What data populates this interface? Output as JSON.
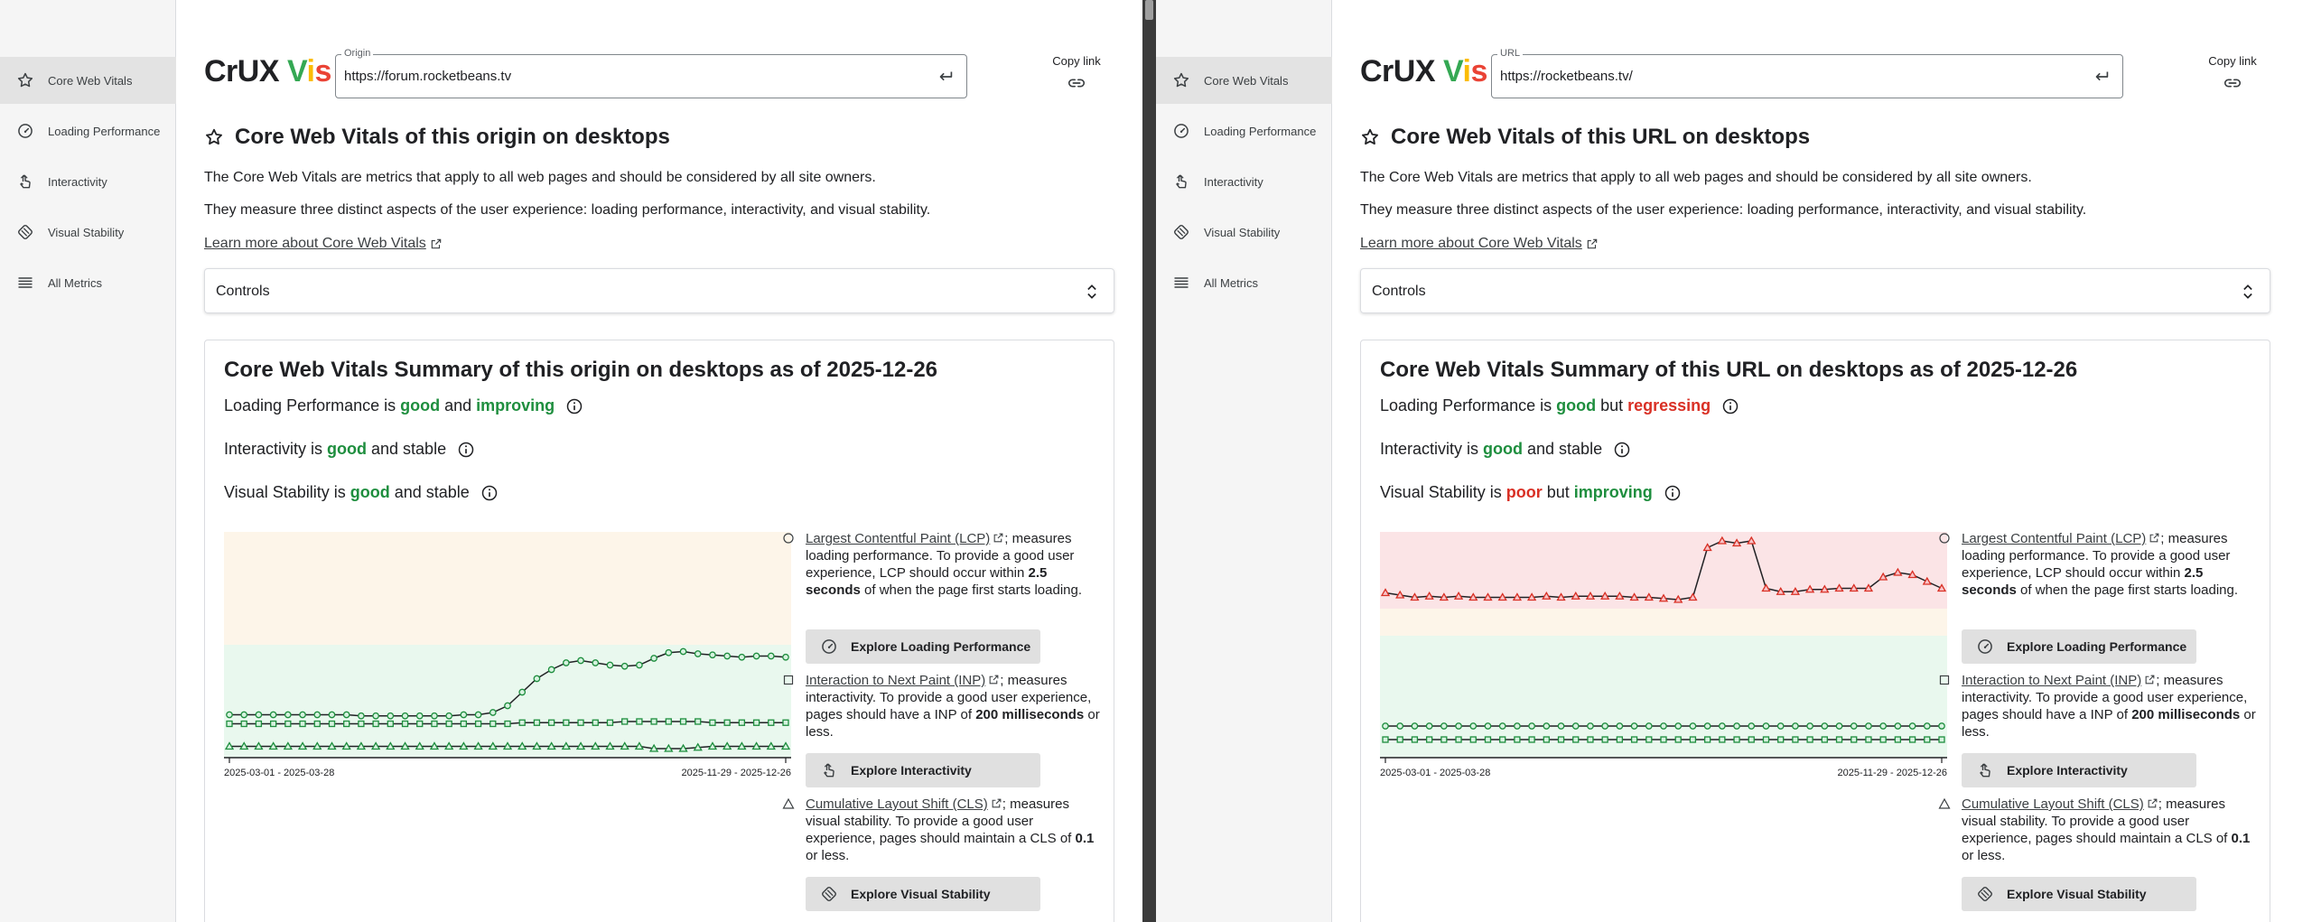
{
  "panes": [
    {
      "nav": [
        {
          "label": "Core Web Vitals",
          "icon": "star-icon",
          "active": true
        },
        {
          "label": "Loading Performance",
          "icon": "gauge-icon"
        },
        {
          "label": "Interactivity",
          "icon": "tap-icon"
        },
        {
          "label": "Visual Stability",
          "icon": "stability-icon"
        },
        {
          "label": "All Metrics",
          "icon": "list-icon"
        }
      ],
      "brand": {
        "a": "CrUX ",
        "b": "V",
        "c": "i",
        "d": "s"
      },
      "field": {
        "label": "Origin",
        "value": "https://forum.rocketbeans.tv"
      },
      "copy_link": "Copy link",
      "heading": "Core Web Vitals of this origin on desktops",
      "intro1": "The Core Web Vitals are metrics that apply to all web pages and should be considered by all site owners.",
      "intro2": "They measure three distinct aspects of the user experience: loading performance, interactivity, and visual stability.",
      "learn_more": "Learn more about Core Web Vitals",
      "controls_label": "Controls",
      "summary_title": "Core Web Vitals Summary of this origin on desktops as of 2025-12-26",
      "status": [
        {
          "prefix": "Loading Performance is ",
          "rating": "good",
          "rating_class": "good",
          "conj": " and ",
          "trend": "improving",
          "trend_class": "improving"
        },
        {
          "prefix": "Interactivity is ",
          "rating": "good",
          "rating_class": "good",
          "conj": " and stable",
          "trend": "",
          "trend_class": ""
        },
        {
          "prefix": "Visual Stability is ",
          "rating": "good",
          "rating_class": "good",
          "conj": " and stable",
          "trend": "",
          "trend_class": ""
        }
      ],
      "chart_data": {
        "type": "line",
        "x_labels": [
          "2025-03-01 - 2025-03-28",
          "2025-11-29 - 2025-12-26"
        ],
        "bands": [
          "#fdf5e9",
          "#e9f8ee"
        ],
        "band_split": [
          0.5
        ],
        "series": [
          {
            "marker": "circle",
            "color": "#1e8e3e",
            "values": [
              0.19,
              0.19,
              0.19,
              0.19,
              0.19,
              0.19,
              0.19,
              0.19,
              0.19,
              0.185,
              0.185,
              0.185,
              0.185,
              0.185,
              0.185,
              0.185,
              0.19,
              0.19,
              0.2,
              0.23,
              0.29,
              0.35,
              0.39,
              0.42,
              0.43,
              0.42,
              0.41,
              0.405,
              0.41,
              0.44,
              0.465,
              0.47,
              0.46,
              0.455,
              0.45,
              0.445,
              0.45,
              0.45,
              0.445
            ]
          },
          {
            "marker": "square",
            "color": "#1e8e3e",
            "values": [
              0.15,
              0.15,
              0.15,
              0.15,
              0.15,
              0.15,
              0.15,
              0.15,
              0.15,
              0.15,
              0.15,
              0.15,
              0.15,
              0.15,
              0.15,
              0.15,
              0.15,
              0.15,
              0.15,
              0.15,
              0.155,
              0.155,
              0.155,
              0.155,
              0.155,
              0.155,
              0.155,
              0.16,
              0.16,
              0.16,
              0.16,
              0.16,
              0.16,
              0.155,
              0.155,
              0.155,
              0.155,
              0.155,
              0.155
            ]
          },
          {
            "marker": "triangle",
            "color": "#1e8e3e",
            "values": [
              0.05,
              0.05,
              0.05,
              0.05,
              0.05,
              0.05,
              0.05,
              0.05,
              0.05,
              0.05,
              0.05,
              0.05,
              0.05,
              0.05,
              0.05,
              0.05,
              0.05,
              0.05,
              0.05,
              0.05,
              0.05,
              0.05,
              0.05,
              0.05,
              0.05,
              0.05,
              0.05,
              0.05,
              0.05,
              0.04,
              0.04,
              0.04,
              0.045,
              0.05,
              0.05,
              0.05,
              0.05,
              0.05,
              0.05
            ]
          }
        ]
      },
      "legend": [
        {
          "marker": "circle",
          "link": "Largest Contentful Paint (LCP)",
          "text1": "; measures loading performance. To provide a good user experience, LCP should occur within ",
          "bold": "2.5 seconds",
          "text2": " of when the page first starts loading.",
          "button": "Explore Loading Performance",
          "button_icon": "gauge-icon"
        },
        {
          "marker": "square",
          "link": "Interaction to Next Paint (INP)",
          "text1": "; measures interactivity. To provide a good user experience, pages should have a INP of ",
          "bold": "200 milliseconds",
          "text2": " or less.",
          "button": "Explore Interactivity",
          "button_icon": "tap-icon"
        },
        {
          "marker": "triangle",
          "link": "Cumulative Layout Shift (CLS)",
          "text1": "; measures visual stability. To provide a good user experience, pages should maintain a CLS of ",
          "bold": "0.1",
          "text2": " or less.",
          "button": "Explore Visual Stability",
          "button_icon": "stability-icon"
        }
      ]
    },
    {
      "nav": [
        {
          "label": "Core Web Vitals",
          "icon": "star-icon",
          "active": true
        },
        {
          "label": "Loading Performance",
          "icon": "gauge-icon"
        },
        {
          "label": "Interactivity",
          "icon": "tap-icon"
        },
        {
          "label": "Visual Stability",
          "icon": "stability-icon"
        },
        {
          "label": "All Metrics",
          "icon": "list-icon"
        }
      ],
      "brand": {
        "a": "CrUX ",
        "b": "V",
        "c": "i",
        "d": "s"
      },
      "field": {
        "label": "URL",
        "value": "https://rocketbeans.tv/"
      },
      "copy_link": "Copy link",
      "heading": "Core Web Vitals of this URL on desktops",
      "intro1": "The Core Web Vitals are metrics that apply to all web pages and should be considered by all site owners.",
      "intro2": "They measure three distinct aspects of the user experience: loading performance, interactivity, and visual stability.",
      "learn_more": "Learn more about Core Web Vitals",
      "controls_label": "Controls",
      "summary_title": "Core Web Vitals Summary of this URL on desktops as of 2025-12-26",
      "status": [
        {
          "prefix": "Loading Performance is ",
          "rating": "good",
          "rating_class": "good",
          "conj": " but ",
          "trend": "regressing",
          "trend_class": "regressing"
        },
        {
          "prefix": "Interactivity is ",
          "rating": "good",
          "rating_class": "good",
          "conj": " and stable",
          "trend": "",
          "trend_class": ""
        },
        {
          "prefix": "Visual Stability is ",
          "rating": "poor",
          "rating_class": "poor",
          "conj": " but ",
          "trend": "improving",
          "trend_class": "improving"
        }
      ],
      "chart_data": {
        "type": "line",
        "x_labels": [
          "2025-03-01 - 2025-03-28",
          "2025-11-29 - 2025-12-26"
        ],
        "bands": [
          "#fbe4e6",
          "#fdf5e9",
          "#e9f8ee"
        ],
        "band_split": [
          0.34,
          0.12
        ],
        "series": [
          {
            "marker": "triangle",
            "color": "#d93025",
            "values": [
              0.73,
              0.72,
              0.71,
              0.715,
              0.71,
              0.715,
              0.71,
              0.71,
              0.71,
              0.71,
              0.71,
              0.715,
              0.71,
              0.715,
              0.715,
              0.715,
              0.715,
              0.71,
              0.71,
              0.705,
              0.7,
              0.71,
              0.93,
              0.96,
              0.95,
              0.96,
              0.75,
              0.735,
              0.735,
              0.745,
              0.745,
              0.75,
              0.75,
              0.75,
              0.8,
              0.82,
              0.81,
              0.78,
              0.75
            ]
          },
          {
            "marker": "circle",
            "color": "#1e8e3e",
            "values": [
              0.14,
              0.14,
              0.14,
              0.14,
              0.14,
              0.14,
              0.14,
              0.14,
              0.14,
              0.14,
              0.14,
              0.14,
              0.14,
              0.14,
              0.14,
              0.14,
              0.14,
              0.14,
              0.14,
              0.14,
              0.14,
              0.14,
              0.14,
              0.14,
              0.14,
              0.14,
              0.14,
              0.14,
              0.14,
              0.14,
              0.14,
              0.14,
              0.14,
              0.14,
              0.14,
              0.14,
              0.14,
              0.14,
              0.14
            ]
          },
          {
            "marker": "square",
            "color": "#1e8e3e",
            "values": [
              0.08,
              0.08,
              0.08,
              0.08,
              0.08,
              0.08,
              0.08,
              0.08,
              0.08,
              0.08,
              0.08,
              0.08,
              0.08,
              0.08,
              0.08,
              0.08,
              0.08,
              0.08,
              0.08,
              0.08,
              0.08,
              0.08,
              0.08,
              0.08,
              0.08,
              0.08,
              0.08,
              0.08,
              0.08,
              0.08,
              0.08,
              0.08,
              0.08,
              0.08,
              0.08,
              0.08,
              0.08,
              0.08,
              0.08
            ]
          }
        ]
      },
      "legend": [
        {
          "marker": "circle",
          "link": "Largest Contentful Paint (LCP)",
          "text1": "; measures loading performance. To provide a good user experience, LCP should occur within ",
          "bold": "2.5 seconds",
          "text2": " of when the page first starts loading.",
          "button": "Explore Loading Performance",
          "button_icon": "gauge-icon"
        },
        {
          "marker": "square",
          "link": "Interaction to Next Paint (INP)",
          "text1": "; measures interactivity. To provide a good user experience, pages should have a INP of ",
          "bold": "200 milliseconds",
          "text2": " or less.",
          "button": "Explore Interactivity",
          "button_icon": "tap-icon"
        },
        {
          "marker": "triangle",
          "link": "Cumulative Layout Shift (CLS)",
          "text1": "; measures visual stability. To provide a good user experience, pages should maintain a CLS of ",
          "bold": "0.1",
          "text2": " or less.",
          "button": "Explore Visual Stability",
          "button_icon": "stability-icon"
        }
      ]
    }
  ]
}
